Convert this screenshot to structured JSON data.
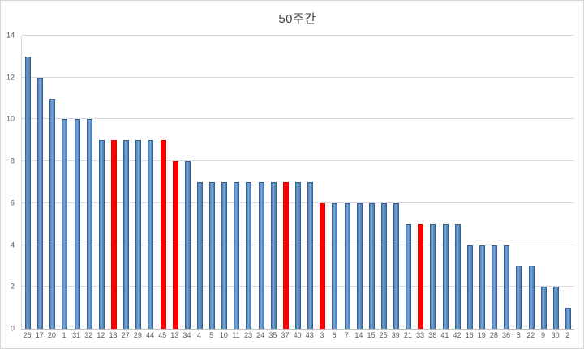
{
  "chart_data": {
    "type": "bar",
    "title": "50주간",
    "categories": [
      "26",
      "17",
      "20",
      "1",
      "31",
      "32",
      "12",
      "18",
      "27",
      "29",
      "44",
      "45",
      "13",
      "34",
      "4",
      "5",
      "10",
      "11",
      "23",
      "24",
      "35",
      "37",
      "40",
      "43",
      "3",
      "6",
      "7",
      "14",
      "15",
      "25",
      "39",
      "21",
      "33",
      "38",
      "41",
      "42",
      "16",
      "19",
      "28",
      "36",
      "8",
      "22",
      "9",
      "30",
      "2"
    ],
    "values": [
      13,
      12,
      11,
      10,
      10,
      10,
      9,
      9,
      9,
      9,
      9,
      9,
      8,
      8,
      7,
      7,
      7,
      7,
      7,
      7,
      7,
      7,
      7,
      7,
      6,
      6,
      6,
      6,
      6,
      6,
      6,
      5,
      5,
      5,
      5,
      5,
      4,
      4,
      4,
      4,
      3,
      3,
      2,
      2,
      1
    ],
    "highlight_indices": [
      7,
      11,
      12,
      21,
      24,
      32
    ],
    "highlighted_categories": [
      "18",
      "45",
      "13",
      "37",
      "3",
      "33"
    ],
    "xlabel": "",
    "ylabel": "",
    "ylim": [
      0,
      14
    ],
    "yticks": [
      0,
      2,
      4,
      6,
      8,
      10,
      12,
      14
    ],
    "grid": true,
    "legend": "none",
    "colors": {
      "bar_fill": "#4f81bd",
      "bar_fill_light": "#7da6d3",
      "bar_border": "#35608d",
      "highlight_fill": "#ff0000",
      "highlight_border": "#e00000",
      "gridline": "#d9d9d9",
      "axis_line": "#bfbfbf",
      "label_text": "#595959",
      "title_text": "#404040"
    }
  }
}
